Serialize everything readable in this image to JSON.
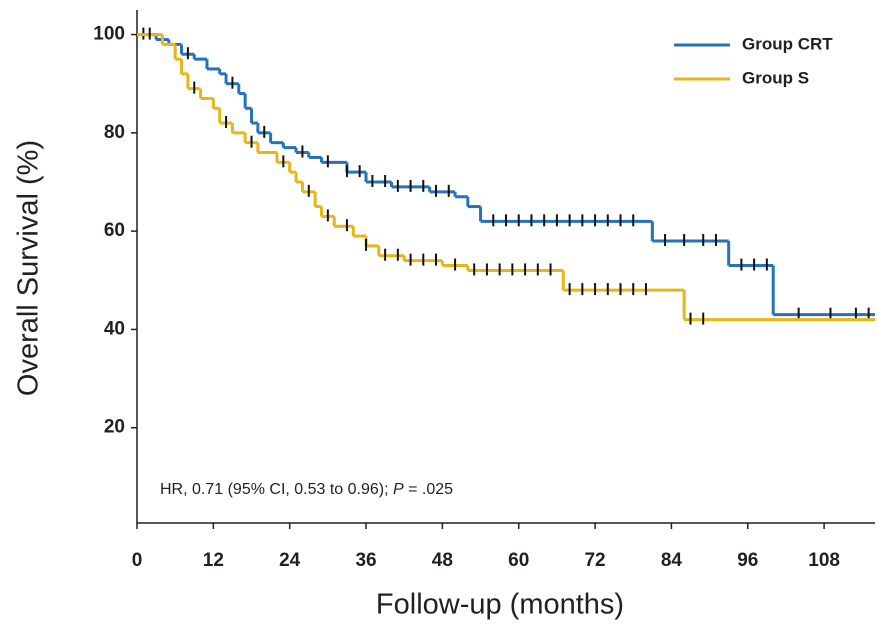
{
  "chart_data": {
    "type": "step",
    "xlabel": "Follow-up (months)",
    "ylabel": "Overall Survival (%)",
    "annotation": {
      "prefix": "HR, 0.71 (95% CI, 0.53 to 0.96); ",
      "italic": "P",
      "suffix": " = .025"
    },
    "xlim": [
      0,
      116
    ],
    "ylim": [
      0,
      105
    ],
    "xticks": [
      0,
      12,
      24,
      36,
      48,
      60,
      72,
      84,
      96,
      108
    ],
    "yticks": [
      20,
      40,
      60,
      80,
      100
    ],
    "legend": "upper right",
    "series": [
      {
        "name": "Group CRT",
        "color": "#2672b8",
        "x": [
          0,
          3,
          5,
          7,
          9,
          11,
          13,
          14,
          16,
          17,
          18,
          19,
          21,
          23,
          25,
          27,
          29,
          33,
          36,
          40,
          46,
          50,
          52,
          54,
          81,
          93,
          100,
          116
        ],
        "values": [
          100,
          99,
          98,
          96,
          95,
          93,
          92,
          90,
          88,
          85,
          82,
          80,
          78,
          77,
          76,
          75,
          74,
          72,
          70,
          69,
          68,
          67,
          65,
          62,
          58,
          53,
          43,
          43
        ],
        "censor_x": [
          1,
          8,
          15,
          20,
          26,
          30,
          33,
          35,
          37,
          39,
          41,
          43,
          45,
          47,
          49,
          56,
          58,
          60,
          62,
          64,
          66,
          68,
          70,
          72,
          74,
          76,
          78,
          83,
          86,
          89,
          91,
          95,
          97,
          99,
          104,
          109,
          113,
          115
        ],
        "censor_values": [
          100,
          96,
          90,
          80,
          76,
          74,
          72,
          72,
          70,
          70,
          69,
          69,
          69,
          68,
          68,
          62,
          62,
          62,
          62,
          62,
          62,
          62,
          62,
          62,
          62,
          62,
          62,
          58,
          58,
          58,
          58,
          53,
          53,
          53,
          43,
          43,
          43,
          43
        ]
      },
      {
        "name": "Group S",
        "color": "#e8b416",
        "x": [
          0,
          4,
          6,
          7,
          8,
          10,
          12,
          13,
          15,
          17,
          19,
          22,
          24,
          25,
          26,
          28,
          29,
          31,
          34,
          36,
          38,
          42,
          48,
          52,
          67,
          86,
          116
        ],
        "values": [
          100,
          98,
          95,
          92,
          89,
          87,
          85,
          82,
          80,
          78,
          76,
          74,
          72,
          70,
          68,
          65,
          63,
          61,
          59,
          57,
          55,
          54,
          53,
          52,
          48,
          42,
          42
        ],
        "censor_x": [
          2,
          9,
          14,
          18,
          23,
          27,
          30,
          33,
          36,
          39,
          41,
          43,
          45,
          47,
          50,
          53,
          55,
          57,
          59,
          61,
          63,
          65,
          68,
          70,
          72,
          74,
          76,
          78,
          80,
          87,
          89
        ],
        "censor_values": [
          100,
          89,
          82,
          78,
          74,
          68,
          63,
          61,
          57,
          55,
          55,
          54,
          54,
          54,
          53,
          52,
          52,
          52,
          52,
          52,
          52,
          52,
          48,
          48,
          48,
          48,
          48,
          48,
          48,
          42,
          42
        ]
      }
    ]
  }
}
